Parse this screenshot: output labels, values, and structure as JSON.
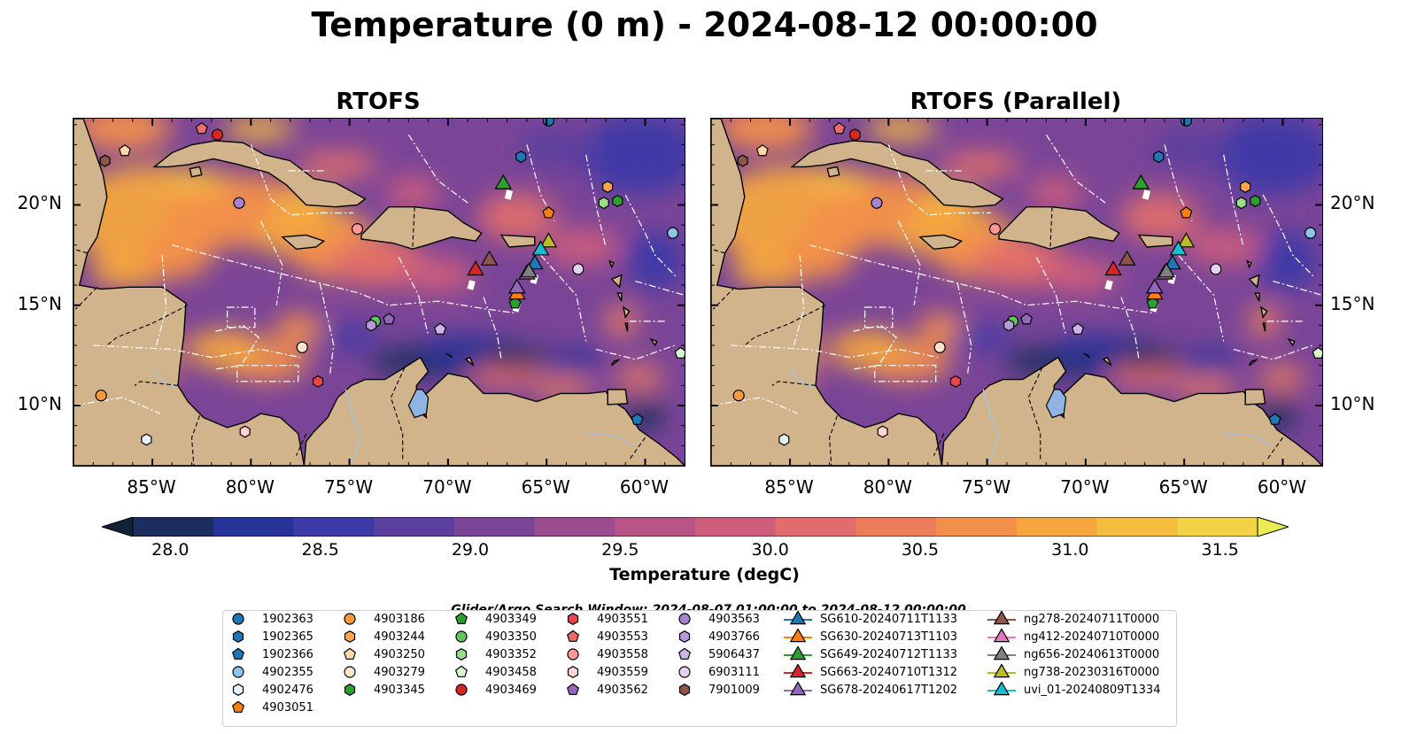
{
  "title": "Temperature (0 m) - 2024-08-12 00:00:00",
  "panels": [
    {
      "title": "RTOFS"
    },
    {
      "title": "RTOFS (Parallel)"
    }
  ],
  "x_ticks": [
    "85°W",
    "80°W",
    "75°W",
    "70°W",
    "65°W",
    "60°W"
  ],
  "y_ticks": [
    "20°N",
    "15°N",
    "10°N"
  ],
  "colorbar": {
    "label": "Temperature (degC)",
    "ticks": [
      "28.0",
      "28.5",
      "29.0",
      "29.5",
      "30.0",
      "30.5",
      "31.0",
      "31.5"
    ],
    "colors": [
      "#0f2236",
      "#1b2e5e",
      "#28339a",
      "#3d3aa8",
      "#5b3f9f",
      "#7b4597",
      "#9a4c8e",
      "#b85586",
      "#cf5e7c",
      "#e06d6c",
      "#ec7d5b",
      "#f38f4b",
      "#f6a63f",
      "#f5bd3f",
      "#f2d247",
      "#ebeb53"
    ]
  },
  "search_window": "Glider/Argo Search Window: 2024-08-07 01:00:00 to 2024-08-12 00:00:00",
  "legend_argo": [
    {
      "label": "1902363",
      "marker": "circle",
      "color": "#1f77b4"
    },
    {
      "label": "1902365",
      "marker": "hexagon",
      "color": "#1f77b4"
    },
    {
      "label": "1902366",
      "marker": "pentagon",
      "color": "#1f77b4"
    },
    {
      "label": "4902355",
      "marker": "circle",
      "color": "#8fc4e8"
    },
    {
      "label": "4902476",
      "marker": "hexagon",
      "color": "#e6f2fb"
    },
    {
      "label": "4903051",
      "marker": "pentagon",
      "color": "#ff7f0e"
    },
    {
      "label": "4903186",
      "marker": "circle",
      "color": "#ff9a3c"
    },
    {
      "label": "4903244",
      "marker": "hexagon",
      "color": "#ffa64d"
    },
    {
      "label": "4903250",
      "marker": "pentagon",
      "color": "#ffd8a8"
    },
    {
      "label": "4903279",
      "marker": "circle",
      "color": "#ffe6cc"
    },
    {
      "label": "4903345",
      "marker": "hexagon",
      "color": "#2ca02c"
    },
    {
      "label": "4903349",
      "marker": "pentagon",
      "color": "#2ca02c"
    },
    {
      "label": "4903350",
      "marker": "circle",
      "color": "#5cc75c"
    },
    {
      "label": "4903352",
      "marker": "hexagon",
      "color": "#98df8a"
    },
    {
      "label": "4903458",
      "marker": "pentagon",
      "color": "#d9f5d0"
    },
    {
      "label": "4903469",
      "marker": "circle",
      "color": "#d62728"
    },
    {
      "label": "4903551",
      "marker": "hexagon",
      "color": "#e6474a"
    },
    {
      "label": "4903553",
      "marker": "pentagon",
      "color": "#ee6a6b"
    },
    {
      "label": "4903558",
      "marker": "circle",
      "color": "#ff9896"
    },
    {
      "label": "4903559",
      "marker": "hexagon",
      "color": "#ffd5d4"
    },
    {
      "label": "4903562",
      "marker": "pentagon",
      "color": "#9467bd"
    },
    {
      "label": "4903563",
      "marker": "circle",
      "color": "#a883cc"
    },
    {
      "label": "4903766",
      "marker": "hexagon",
      "color": "#b89ad8"
    },
    {
      "label": "5906437",
      "marker": "pentagon",
      "color": "#cdb6e6"
    },
    {
      "label": "6903111",
      "marker": "circle",
      "color": "#e4d2f3"
    },
    {
      "label": "7901009",
      "marker": "hexagon",
      "color": "#8c564b"
    }
  ],
  "legend_gliders": [
    {
      "label": "SG610-20240711T1133",
      "color": "#1f77b4"
    },
    {
      "label": "SG630-20240713T1103",
      "color": "#ff7f0e"
    },
    {
      "label": "SG649-20240712T1133",
      "color": "#2ca02c"
    },
    {
      "label": "SG663-20240710T1312",
      "color": "#d62728"
    },
    {
      "label": "SG678-20240617T1202",
      "color": "#9467bd"
    },
    {
      "label": "ng278-20240711T0000",
      "color": "#8c564b"
    },
    {
      "label": "ng412-20240710T0000",
      "color": "#e377c2"
    },
    {
      "label": "ng656-20240613T0000",
      "color": "#7f7f7f"
    },
    {
      "label": "ng738-20230316T0000",
      "color": "#bcbd22"
    },
    {
      "label": "uvi_01-20240809T1334",
      "color": "#17becf"
    }
  ],
  "map": {
    "lon_range": [
      -89,
      -58
    ],
    "lat_range": [
      7,
      24.3
    ],
    "land_color": "#d2b48c",
    "lake_color": "#8fb4e3",
    "river_color": "#a9c0d6",
    "argo_positions": [
      {
        "id": "1902363",
        "lon": -64.9,
        "lat": 24.2
      },
      {
        "id": "1902365",
        "lon": -66.3,
        "lat": 22.4
      },
      {
        "id": "1902366",
        "lon": -60.4,
        "lat": 9.3
      },
      {
        "id": "4902355",
        "lon": -58.6,
        "lat": 18.6
      },
      {
        "id": "4902476",
        "lon": -85.3,
        "lat": 8.3
      },
      {
        "id": "4903051",
        "lon": -64.9,
        "lat": 19.6
      },
      {
        "id": "4903186",
        "lon": -87.6,
        "lat": 10.5
      },
      {
        "id": "4903244",
        "lon": -61.9,
        "lat": 20.9
      },
      {
        "id": "4903250",
        "lon": -86.4,
        "lat": 22.7
      },
      {
        "id": "4903279",
        "lon": -77.4,
        "lat": 12.9
      },
      {
        "id": "4903345",
        "lon": -61.4,
        "lat": 20.2
      },
      {
        "id": "4903349",
        "lon": -66.6,
        "lat": 15.1
      },
      {
        "id": "4903350",
        "lon": -73.7,
        "lat": 14.2
      },
      {
        "id": "4903352",
        "lon": -62.1,
        "lat": 20.1
      },
      {
        "id": "4903458",
        "lon": -58.2,
        "lat": 12.6
      },
      {
        "id": "4903469",
        "lon": -81.7,
        "lat": 23.5
      },
      {
        "id": "4903551",
        "lon": -76.6,
        "lat": 11.2
      },
      {
        "id": "4903553",
        "lon": -82.5,
        "lat": 23.8
      },
      {
        "id": "4903558",
        "lon": -74.6,
        "lat": 18.8
      },
      {
        "id": "4903559",
        "lon": -80.3,
        "lat": 8.7
      },
      {
        "id": "4903562",
        "lon": -73.0,
        "lat": 14.3
      },
      {
        "id": "4903563",
        "lon": -80.6,
        "lat": 20.1
      },
      {
        "id": "4903766",
        "lon": -73.9,
        "lat": 14.0
      },
      {
        "id": "5906437",
        "lon": -70.4,
        "lat": 13.8
      },
      {
        "id": "6903111",
        "lon": -63.4,
        "lat": 16.8
      },
      {
        "id": "7901009",
        "lon": -87.4,
        "lat": 22.2
      }
    ],
    "glider_positions": [
      {
        "id": "SG610-20240711T1133",
        "lon": -65.6,
        "lat": 17.1
      },
      {
        "id": "SG630-20240713T1103",
        "lon": -66.5,
        "lat": 15.6
      },
      {
        "id": "SG649-20240712T1133",
        "lon": -67.2,
        "lat": 21.1
      },
      {
        "id": "SG663-20240710T1312",
        "lon": -68.6,
        "lat": 16.8
      },
      {
        "id": "SG678-20240617T1202",
        "lon": -66.5,
        "lat": 15.9
      },
      {
        "id": "ng278-20240711T0000",
        "lon": -67.9,
        "lat": 17.3
      },
      {
        "id": "ng412-20240710T0000",
        "lon": -66.0,
        "lat": 16.6
      },
      {
        "id": "ng656-20240613T0000",
        "lon": -65.9,
        "lat": 16.7
      },
      {
        "id": "ng738-20230316T0000",
        "lon": -64.9,
        "lat": 18.2
      },
      {
        "id": "uvi_01-20240809T1334",
        "lon": -65.3,
        "lat": 17.8
      }
    ]
  }
}
